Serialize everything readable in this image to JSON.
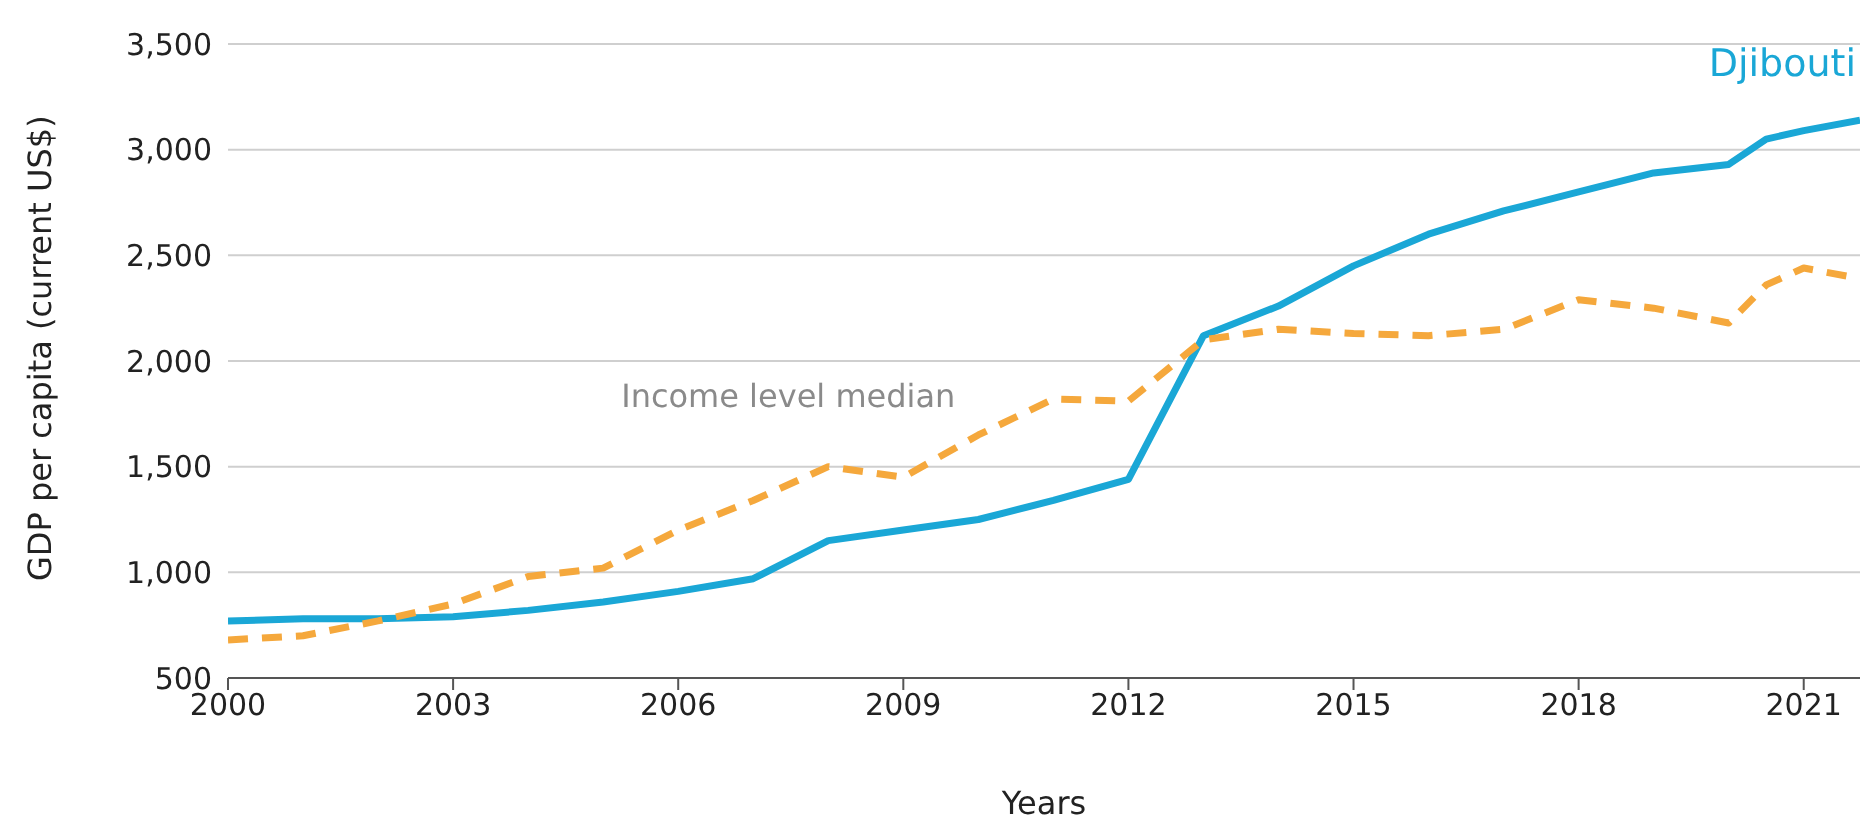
{
  "chart_data": {
    "type": "line",
    "xlabel": "Years",
    "ylabel": "GDP per capita (current US$)",
    "x": [
      2000,
      2001,
      2002,
      2003,
      2004,
      2005,
      2006,
      2007,
      2008,
      2009,
      2010,
      2011,
      2012,
      2013,
      2014,
      2015,
      2016,
      2017,
      2018,
      2019,
      2020,
      2020.5,
      2021,
      2021.75
    ],
    "series": [
      {
        "name": "Djibouti",
        "color": "#1aa7d6",
        "line_style": "solid",
        "values": [
          770,
          780,
          780,
          790,
          820,
          860,
          910,
          970,
          1150,
          1200,
          1250,
          1340,
          1440,
          2120,
          2260,
          2450,
          2600,
          2710,
          2800,
          2890,
          2930,
          3050,
          3090,
          3140
        ]
      },
      {
        "name": "Income level median",
        "color": "#f5a83c",
        "line_style": "dashed",
        "values": [
          680,
          700,
          770,
          850,
          980,
          1020,
          1200,
          1340,
          1500,
          1450,
          1650,
          1820,
          1810,
          2100,
          2150,
          2130,
          2120,
          2150,
          2290,
          2250,
          2180,
          2360,
          2440,
          2390
        ]
      }
    ],
    "xlim": [
      2000,
      2021.75
    ],
    "xticks": [
      2000,
      2003,
      2006,
      2009,
      2012,
      2015,
      2018,
      2021
    ],
    "ylim": [
      500,
      3500
    ],
    "yticks": [
      {
        "value": 500,
        "label": "500"
      },
      {
        "value": 1000,
        "label": "1,000"
      },
      {
        "value": 1500,
        "label": "1,500"
      },
      {
        "value": 2000,
        "label": "2,000"
      },
      {
        "value": 2500,
        "label": "2,500"
      },
      {
        "value": 3000,
        "label": "3,000"
      },
      {
        "value": 3500,
        "label": "3,500"
      }
    ],
    "grid": "y",
    "legend": false,
    "marker": "none"
  }
}
